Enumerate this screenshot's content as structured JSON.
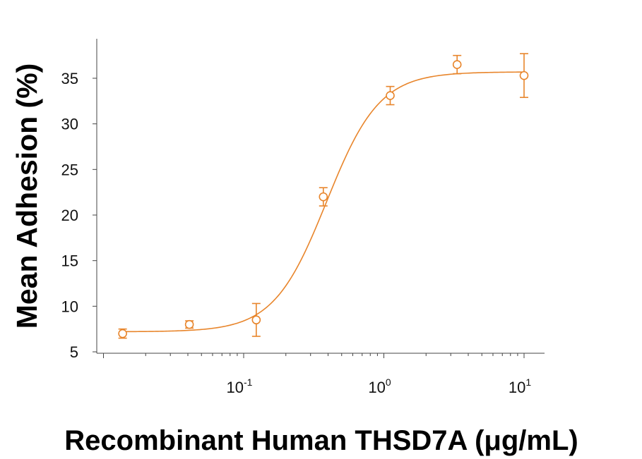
{
  "chart_data": {
    "type": "scatter",
    "title": "",
    "xlabel": "Recombinant Human THSD7A (μg/mL)",
    "ylabel": "Mean Adhesion (%)",
    "xscale": "log",
    "xlim": [
      0.01,
      15
    ],
    "ylim": [
      5,
      38
    ],
    "yticks": [
      "5",
      "10",
      "15",
      "20",
      "25",
      "30",
      "35"
    ],
    "xticks": [
      {
        "base": "10",
        "exp": "-1",
        "value": 0.1
      },
      {
        "base": "10",
        "exp": "0",
        "value": 1
      },
      {
        "base": "10",
        "exp": "1",
        "value": 10
      }
    ],
    "grid": false,
    "color": "#e8852b",
    "series": [
      {
        "name": "Mean Adhesion",
        "x": [
          0.0137,
          0.041,
          0.123,
          0.37,
          1.11,
          3.33,
          10.0
        ],
        "y": [
          7.0,
          8.0,
          8.5,
          22.0,
          33.1,
          36.5,
          35.3
        ],
        "err": [
          0.5,
          0.4,
          1.8,
          1.0,
          1.0,
          1.0,
          2.4
        ]
      }
    ],
    "fit": {
      "model": "4PL",
      "bottom": 7.2,
      "top": 35.7,
      "ec50": 0.39,
      "hill": 2.3
    }
  }
}
